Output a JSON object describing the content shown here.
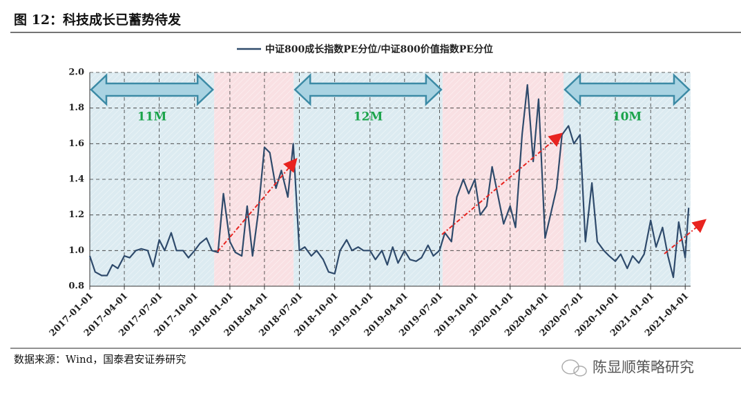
{
  "chart_data": {
    "type": "line",
    "title": "图 12：科技成长已蓄势待发",
    "source": "数据来源：Wind，国泰君安证券研究",
    "watermark": "陈显顺策略研究",
    "xlim": [
      "2017-01-01",
      "2021-04-15"
    ],
    "xticks": [
      "2017-01-01",
      "2017-04-01",
      "2017-07-01",
      "2017-10-01",
      "2018-01-01",
      "2018-04-01",
      "2018-07-01",
      "2018-10-01",
      "2019-01-01",
      "2019-04-01",
      "2019-07-01",
      "2019-10-01",
      "2020-01-01",
      "2020-04-01",
      "2020-07-01",
      "2020-10-01",
      "2021-01-01",
      "2021-04-01"
    ],
    "ylim": [
      0.8,
      2.0
    ],
    "yticks": [
      {
        "value": 0.8,
        "label": "0.8"
      },
      {
        "value": 1,
        "label": "1.0"
      },
      {
        "value": 1.2,
        "label": "1.2"
      },
      {
        "value": 1.4,
        "label": "1.4"
      },
      {
        "value": 1.6,
        "label": "1.6"
      },
      {
        "value": 1.8,
        "label": "1.8"
      },
      {
        "value": 2,
        "label": "2.0"
      }
    ],
    "grid": true,
    "regions": [
      {
        "start": "2017-01-01",
        "end": "2017-11-21",
        "color": "#dcebf1"
      },
      {
        "start": "2017-11-21",
        "end": "2018-06-16",
        "color": "#f9e0e3"
      },
      {
        "start": "2018-06-16",
        "end": "2019-07-09",
        "color": "#dcebf1"
      },
      {
        "start": "2019-07-09",
        "end": "2020-05-19",
        "color": "#f9e0e3"
      },
      {
        "start": "2020-05-19",
        "end": "2021-04-15",
        "color": "#dcebf1"
      }
    ],
    "annotations": [
      {
        "start": "2017-01-01",
        "end": "2017-11-21",
        "label": "11M"
      },
      {
        "start": "2018-06-16",
        "end": "2019-07-09",
        "label": "12M"
      },
      {
        "start": "2020-05-19",
        "end": "2021-04-15",
        "label": "10M"
      }
    ],
    "x": [
      "2017-01-01",
      "2017-01-15",
      "2017-02-01",
      "2017-02-15",
      "2017-03-01",
      "2017-03-15",
      "2017-04-01",
      "2017-04-15",
      "2017-05-01",
      "2017-05-15",
      "2017-06-01",
      "2017-06-15",
      "2017-07-01",
      "2017-07-15",
      "2017-08-01",
      "2017-08-15",
      "2017-09-01",
      "2017-09-15",
      "2017-10-01",
      "2017-10-15",
      "2017-11-01",
      "2017-11-15",
      "2017-12-01",
      "2017-12-15",
      "2018-01-01",
      "2018-01-15",
      "2018-02-01",
      "2018-02-15",
      "2018-03-01",
      "2018-03-15",
      "2018-04-01",
      "2018-04-15",
      "2018-05-01",
      "2018-05-15",
      "2018-06-01",
      "2018-06-15",
      "2018-07-01",
      "2018-07-15",
      "2018-08-01",
      "2018-08-15",
      "2018-09-01",
      "2018-09-15",
      "2018-10-01",
      "2018-10-15",
      "2018-11-01",
      "2018-11-15",
      "2018-12-01",
      "2018-12-15",
      "2019-01-01",
      "2019-01-15",
      "2019-02-01",
      "2019-02-15",
      "2019-03-01",
      "2019-03-15",
      "2019-04-01",
      "2019-04-15",
      "2019-05-01",
      "2019-05-15",
      "2019-06-01",
      "2019-06-15",
      "2019-07-01",
      "2019-07-15",
      "2019-08-01",
      "2019-08-15",
      "2019-09-01",
      "2019-09-15",
      "2019-10-01",
      "2019-10-15",
      "2019-11-01",
      "2019-11-15",
      "2019-12-01",
      "2019-12-15",
      "2020-01-01",
      "2020-01-15",
      "2020-02-01",
      "2020-02-15",
      "2020-03-01",
      "2020-03-15",
      "2020-04-01",
      "2020-04-15",
      "2020-05-01",
      "2020-05-15",
      "2020-06-01",
      "2020-06-15",
      "2020-07-01",
      "2020-07-15",
      "2020-08-01",
      "2020-08-15",
      "2020-09-01",
      "2020-09-15",
      "2020-10-01",
      "2020-10-15",
      "2020-11-01",
      "2020-11-15",
      "2020-12-01",
      "2020-12-15",
      "2021-01-01",
      "2021-01-15",
      "2021-02-01",
      "2021-02-15",
      "2021-03-01",
      "2021-03-15",
      "2021-04-01",
      "2021-04-10"
    ],
    "series": [
      {
        "name": "中证800成长指数PE分位/中证800价值指数PE分位",
        "color": "#2e4a6b",
        "values": [
          0.97,
          0.88,
          0.86,
          0.86,
          0.92,
          0.9,
          0.97,
          0.96,
          1.0,
          1.01,
          1.0,
          0.91,
          1.06,
          1.0,
          1.1,
          1.0,
          1.0,
          0.96,
          1.0,
          1.04,
          1.07,
          1.0,
          0.99,
          1.32,
          1.05,
          0.99,
          0.97,
          1.25,
          0.97,
          1.2,
          1.58,
          1.55,
          1.35,
          1.45,
          1.3,
          1.6,
          1.0,
          1.02,
          0.97,
          1.0,
          0.95,
          0.88,
          0.87,
          1.0,
          1.06,
          1.0,
          1.02,
          1.0,
          1.0,
          0.95,
          1.0,
          0.92,
          1.02,
          0.93,
          1.0,
          0.95,
          0.94,
          0.96,
          1.03,
          0.97,
          1.0,
          1.1,
          1.05,
          1.3,
          1.4,
          1.32,
          1.4,
          1.2,
          1.25,
          1.47,
          1.3,
          1.15,
          1.25,
          1.13,
          1.65,
          1.93,
          1.5,
          1.85,
          1.07,
          1.2,
          1.35,
          1.65,
          1.7,
          1.6,
          1.65,
          1.05,
          1.38,
          1.05,
          1.0,
          0.97,
          0.94,
          0.98,
          0.9,
          0.97,
          0.93,
          0.98,
          1.17,
          1.02,
          1.13,
          0.97,
          0.85,
          1.16,
          0.96,
          1.24
        ]
      }
    ]
  }
}
